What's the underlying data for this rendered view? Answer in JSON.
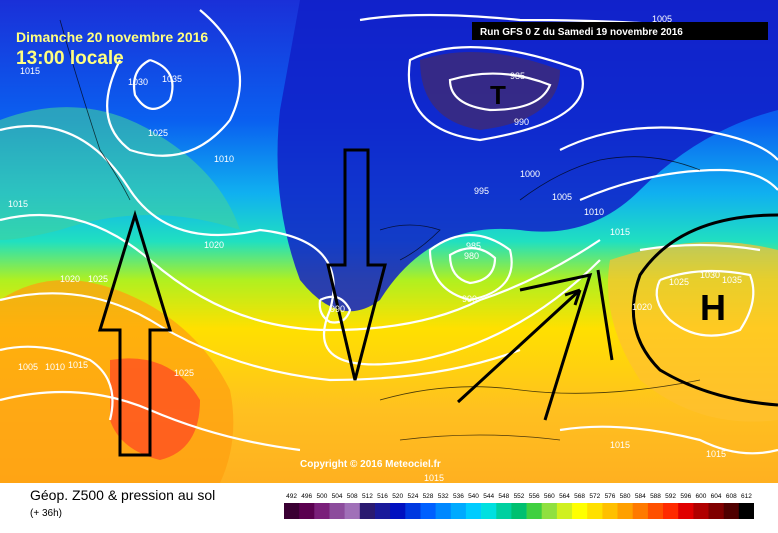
{
  "header": {
    "date": "Dimanche 20 novembre 2016",
    "time": "13:00 locale",
    "run": "Run GFS 0 Z du Samedi 19 novembre 2016"
  },
  "copyright": "Copyright © 2016 Meteociel.fr",
  "footer": {
    "title": "Géop. Z500 & pression au sol",
    "subtitle": "(+ 36h)"
  },
  "pressure_labels": [
    "1005",
    "1015",
    "1030",
    "1035",
    "1025",
    "1010",
    "1015",
    "1020",
    "1020",
    "1025",
    "1005",
    "1010",
    "1015",
    "1025",
    "990",
    "985",
    "T",
    "990",
    "995",
    "1000",
    "1005",
    "1010",
    "1015",
    "985",
    "980",
    "990",
    "1025",
    "1030",
    "1035",
    "1020",
    "1015",
    "1015",
    "H"
  ],
  "scale": {
    "labels": [
      "492",
      "496",
      "500",
      "504",
      "508",
      "512",
      "516",
      "520",
      "524",
      "528",
      "532",
      "536",
      "540",
      "544",
      "548",
      "552",
      "556",
      "560",
      "564",
      "568",
      "572",
      "576",
      "580",
      "584",
      "588",
      "592",
      "596",
      "600",
      "604",
      "608",
      "612"
    ],
    "colors": [
      "#3a0033",
      "#5a004f",
      "#7a1f7a",
      "#8c4c9c",
      "#a070b8",
      "#2a1a70",
      "#1a1a9a",
      "#0010c0",
      "#0038e0",
      "#0060ff",
      "#0088ff",
      "#00aaff",
      "#00ccff",
      "#00e0e0",
      "#00d0a0",
      "#00c070",
      "#40d040",
      "#90e040",
      "#d0f020",
      "#ffff00",
      "#ffe000",
      "#ffc000",
      "#ffa000",
      "#ff7a00",
      "#ff5000",
      "#ff2a00",
      "#e00000",
      "#b00000",
      "#800000",
      "#500000",
      "#000000"
    ]
  }
}
